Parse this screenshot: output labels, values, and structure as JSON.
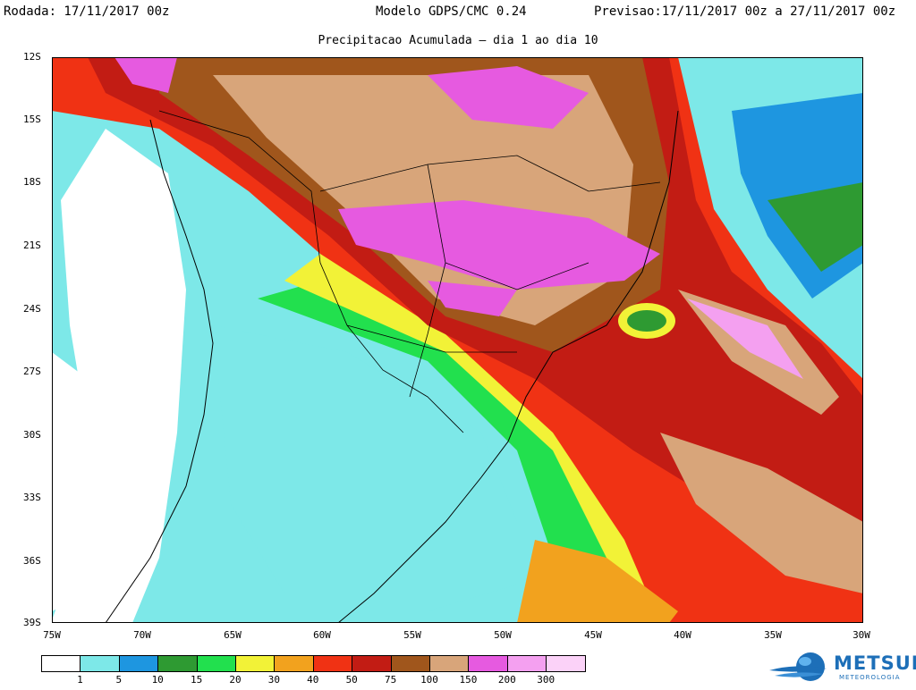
{
  "header": {
    "left": "Rodada: 17/11/2017 00z",
    "center": "Modelo GDPS/CMC 0.24",
    "right": "Previsao:17/11/2017 00z a 27/11/2017 00z",
    "subtitle": "Precipitacao Acumulada – dia 1 ao dia 10"
  },
  "map": {
    "lat_ticks": [
      "12S",
      "15S",
      "18S",
      "21S",
      "24S",
      "27S",
      "30S",
      "33S",
      "36S",
      "39S"
    ],
    "lon_ticks": [
      "75W",
      "70W",
      "65W",
      "60W",
      "55W",
      "50W",
      "45W",
      "40W",
      "35W",
      "30W"
    ],
    "lat_range": [
      -12,
      -39
    ],
    "lon_range": [
      -75,
      -30
    ]
  },
  "legend": {
    "labels": [
      "1",
      "5",
      "10",
      "15",
      "20",
      "30",
      "40",
      "50",
      "75",
      "100",
      "150",
      "200",
      "300"
    ],
    "colors": [
      "#ffffff",
      "#7de8e8",
      "#1e96e0",
      "#2e9a32",
      "#22e04e",
      "#f2f237",
      "#f2a21e",
      "#f03214",
      "#c21c14",
      "#a0561c",
      "#d8a57a",
      "#e65ae0",
      "#f4a0f0",
      "#fbd2f8"
    ]
  },
  "logo": {
    "name": "METSUL",
    "sub": "METEOROLOGIA"
  },
  "colors": {
    "coast": "#000000",
    "grid": "#000000"
  }
}
